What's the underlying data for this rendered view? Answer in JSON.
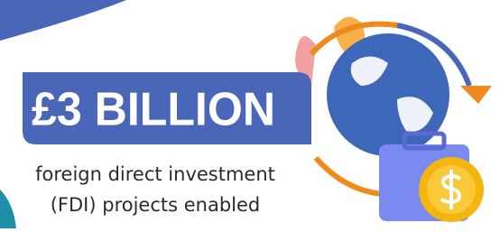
{
  "headline": "£3 BILLION",
  "caption_line1": "foreign direct investment",
  "caption_line2": "(FDI) projects enabled"
}
